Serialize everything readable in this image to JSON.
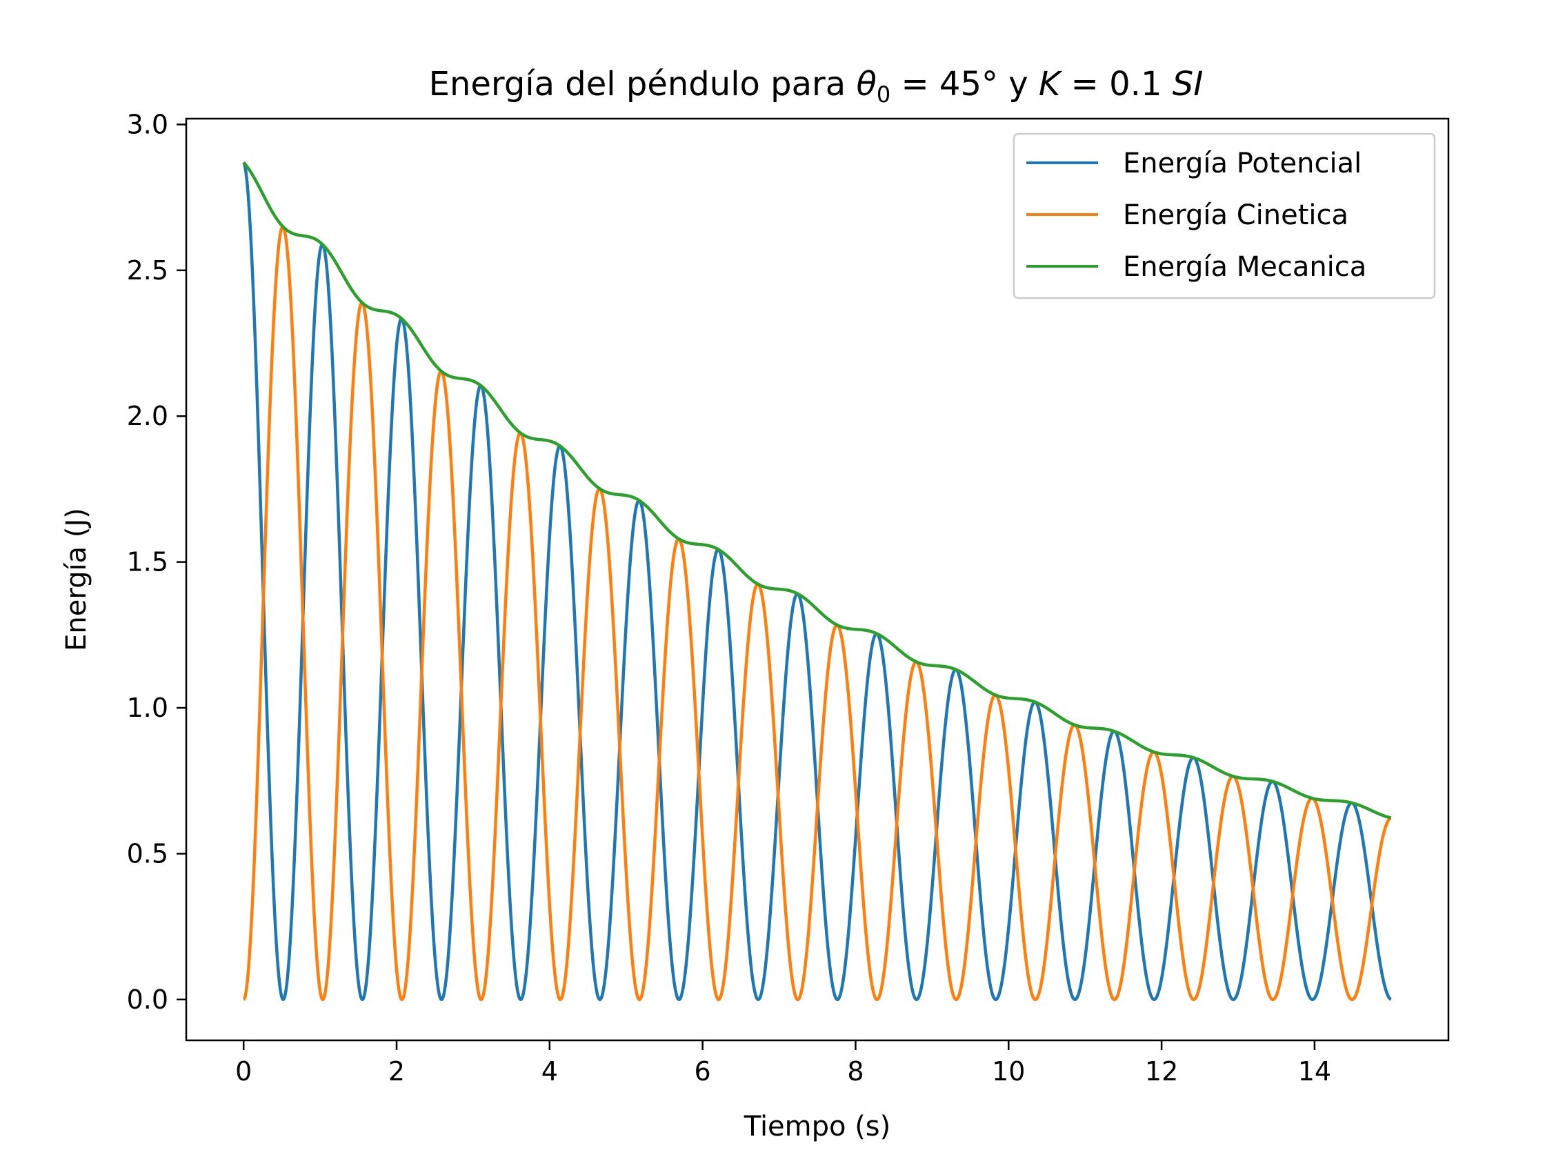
{
  "chart_data": {
    "type": "line",
    "title": {
      "prefix": "Energía del péndulo para ",
      "theta": "θ",
      "theta_sub": "0",
      "eq1": " = 45° y ",
      "K": "K",
      "eq2": " = 0.1 ",
      "unit": "SI"
    },
    "xlabel": "Tiempo (s)",
    "ylabel": "Energía (J)",
    "xlim": [
      -0.75,
      15.75
    ],
    "ylim": [
      -0.14,
      3.02
    ],
    "xticks": [
      0,
      2,
      4,
      6,
      8,
      10,
      12,
      14
    ],
    "yticks": [
      0.0,
      0.5,
      1.0,
      1.5,
      2.0,
      2.5,
      3.0
    ],
    "xtick_labels": [
      "0",
      "2",
      "4",
      "6",
      "8",
      "10",
      "12",
      "14"
    ],
    "ytick_labels": [
      "0.0",
      "0.5",
      "1.0",
      "1.5",
      "2.0",
      "2.5",
      "3.0"
    ],
    "grid": false,
    "legend_position": "top-right",
    "model": {
      "t_start": 0,
      "t_end": 15,
      "E0": 2.87,
      "decay_rate": 0.1,
      "period": 2.07,
      "ripple_amplitude": 0.08
    },
    "series": [
      {
        "name": "Energía Potencial",
        "color": "#1f77b4",
        "kind": "potential"
      },
      {
        "name": "Energía Cinetica",
        "color": "#ff7f0e",
        "kind": "kinetic"
      },
      {
        "name": "Energía Mecanica",
        "color": "#2ca02c",
        "kind": "mechanical"
      }
    ]
  }
}
